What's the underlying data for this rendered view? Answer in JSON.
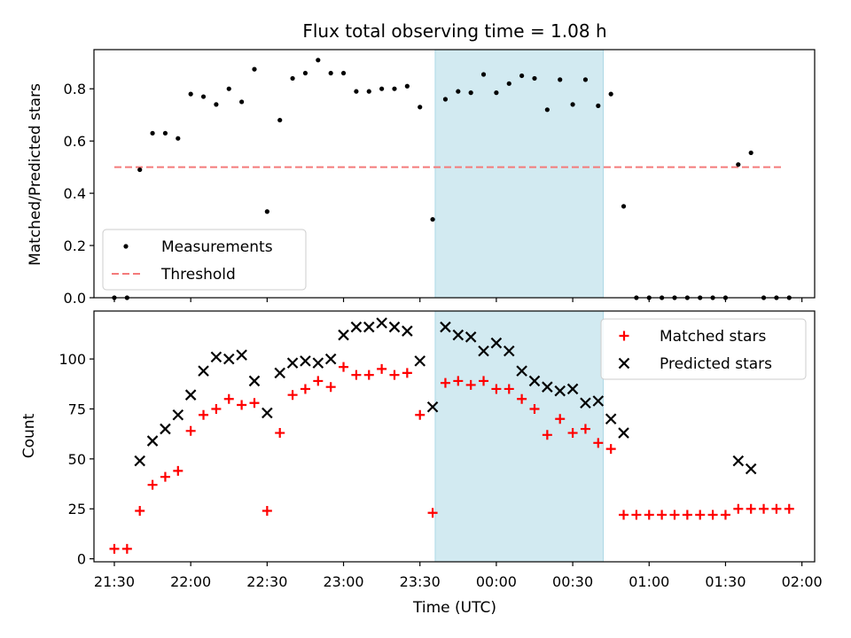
{
  "title": "Flux total observing time = 1.08 h",
  "colors": {
    "measurement": "#000000",
    "threshold": "#f47a7a",
    "matched": "#ff0000",
    "predicted": "#000000",
    "shade": "#add8e6"
  },
  "chart_data": [
    {
      "type": "scatter",
      "ylabel": "Matched/Predicted stars",
      "xlabel": "",
      "xlim": [
        "21:22",
        "02:05"
      ],
      "ylim": [
        0,
        0.95
      ],
      "yticks": [
        "0.0",
        "0.2",
        "0.4",
        "0.6",
        "0.8"
      ],
      "shaded_span": [
        "23:36",
        "00:42"
      ],
      "threshold": {
        "y": 0.5,
        "x_range": [
          "21:30",
          "01:52"
        ]
      },
      "legend": {
        "position": "lower-left",
        "entries": [
          "Measurements",
          "Threshold"
        ]
      },
      "series": [
        {
          "name": "Measurements",
          "marker": "dot",
          "points": [
            [
              "21:30",
              0.0
            ],
            [
              "21:35",
              0.0
            ],
            [
              "21:40",
              0.49
            ],
            [
              "21:45",
              0.63
            ],
            [
              "21:50",
              0.63
            ],
            [
              "21:55",
              0.61
            ],
            [
              "22:00",
              0.78
            ],
            [
              "22:05",
              0.77
            ],
            [
              "22:10",
              0.74
            ],
            [
              "22:15",
              0.8
            ],
            [
              "22:20",
              0.75
            ],
            [
              "22:25",
              0.875
            ],
            [
              "22:30",
              0.33
            ],
            [
              "22:35",
              0.68
            ],
            [
              "22:40",
              0.84
            ],
            [
              "22:45",
              0.86
            ],
            [
              "22:50",
              0.91
            ],
            [
              "22:55",
              0.86
            ],
            [
              "23:00",
              0.86
            ],
            [
              "23:05",
              0.79
            ],
            [
              "23:10",
              0.79
            ],
            [
              "23:15",
              0.8
            ],
            [
              "23:20",
              0.8
            ],
            [
              "23:25",
              0.81
            ],
            [
              "23:30",
              0.73
            ],
            [
              "23:35",
              0.3
            ],
            [
              "23:40",
              0.76
            ],
            [
              "23:45",
              0.79
            ],
            [
              "23:50",
              0.785
            ],
            [
              "23:55",
              0.855
            ],
            [
              "00:00",
              0.785
            ],
            [
              "00:05",
              0.82
            ],
            [
              "00:10",
              0.85
            ],
            [
              "00:15",
              0.84
            ],
            [
              "00:20",
              0.72
            ],
            [
              "00:25",
              0.835
            ],
            [
              "00:30",
              0.74
            ],
            [
              "00:35",
              0.835
            ],
            [
              "00:40",
              0.735
            ],
            [
              "00:45",
              0.78
            ],
            [
              "00:50",
              0.35
            ],
            [
              "00:55",
              0.0
            ],
            [
              "01:00",
              0.0
            ],
            [
              "01:05",
              0.0
            ],
            [
              "01:10",
              0.0
            ],
            [
              "01:15",
              0.0
            ],
            [
              "01:20",
              0.0
            ],
            [
              "01:25",
              0.0
            ],
            [
              "01:30",
              0.0
            ],
            [
              "01:35",
              0.51
            ],
            [
              "01:40",
              0.555
            ],
            [
              "01:45",
              0.0
            ],
            [
              "01:50",
              0.0
            ],
            [
              "01:55",
              0.0
            ]
          ]
        }
      ]
    },
    {
      "type": "scatter",
      "xlabel": "Time (UTC)",
      "ylabel": "Count",
      "xlim": [
        "21:22",
        "02:05"
      ],
      "ylim": [
        -1.5,
        124
      ],
      "xticks": [
        "21:30",
        "22:00",
        "22:30",
        "23:00",
        "23:30",
        "00:00",
        "00:30",
        "01:00",
        "01:30",
        "02:00"
      ],
      "yticks": [
        "0",
        "25",
        "50",
        "75",
        "100"
      ],
      "shaded_span": [
        "23:36",
        "00:42"
      ],
      "legend": {
        "position": "upper-right",
        "entries": [
          "Matched stars",
          "Predicted stars"
        ]
      },
      "series": [
        {
          "name": "Matched stars",
          "marker": "plus",
          "points": [
            [
              "21:30",
              5
            ],
            [
              "21:35",
              5
            ],
            [
              "21:40",
              24
            ],
            [
              "21:45",
              37
            ],
            [
              "21:50",
              41
            ],
            [
              "21:55",
              44
            ],
            [
              "22:00",
              64
            ],
            [
              "22:05",
              72
            ],
            [
              "22:10",
              75
            ],
            [
              "22:15",
              80
            ],
            [
              "22:20",
              77
            ],
            [
              "22:25",
              78
            ],
            [
              "22:30",
              24
            ],
            [
              "22:35",
              63
            ],
            [
              "22:40",
              82
            ],
            [
              "22:45",
              85
            ],
            [
              "22:50",
              89
            ],
            [
              "22:55",
              86
            ],
            [
              "23:00",
              96
            ],
            [
              "23:05",
              92
            ],
            [
              "23:10",
              92
            ],
            [
              "23:15",
              95
            ],
            [
              "23:20",
              92
            ],
            [
              "23:25",
              93
            ],
            [
              "23:30",
              72
            ],
            [
              "23:35",
              23
            ],
            [
              "23:40",
              88
            ],
            [
              "23:45",
              89
            ],
            [
              "23:50",
              87
            ],
            [
              "23:55",
              89
            ],
            [
              "00:00",
              85
            ],
            [
              "00:05",
              85
            ],
            [
              "00:10",
              80
            ],
            [
              "00:15",
              75
            ],
            [
              "00:20",
              62
            ],
            [
              "00:25",
              70
            ],
            [
              "00:30",
              63
            ],
            [
              "00:35",
              65
            ],
            [
              "00:40",
              58
            ],
            [
              "00:45",
              55
            ],
            [
              "00:50",
              22
            ],
            [
              "00:55",
              22
            ],
            [
              "01:00",
              22
            ],
            [
              "01:05",
              22
            ],
            [
              "01:10",
              22
            ],
            [
              "01:15",
              22
            ],
            [
              "01:20",
              22
            ],
            [
              "01:25",
              22
            ],
            [
              "01:30",
              22
            ],
            [
              "01:35",
              25
            ],
            [
              "01:40",
              25
            ],
            [
              "01:45",
              25
            ],
            [
              "01:50",
              25
            ],
            [
              "01:55",
              25
            ]
          ]
        },
        {
          "name": "Predicted stars",
          "marker": "x",
          "points": [
            [
              "21:40",
              49
            ],
            [
              "21:45",
              59
            ],
            [
              "21:50",
              65
            ],
            [
              "21:55",
              72
            ],
            [
              "22:00",
              82
            ],
            [
              "22:05",
              94
            ],
            [
              "22:10",
              101
            ],
            [
              "22:15",
              100
            ],
            [
              "22:20",
              102
            ],
            [
              "22:25",
              89
            ],
            [
              "22:30",
              73
            ],
            [
              "22:35",
              93
            ],
            [
              "22:40",
              98
            ],
            [
              "22:45",
              99
            ],
            [
              "22:50",
              98
            ],
            [
              "22:55",
              100
            ],
            [
              "23:00",
              112
            ],
            [
              "23:05",
              116
            ],
            [
              "23:10",
              116
            ],
            [
              "23:15",
              118
            ],
            [
              "23:20",
              116
            ],
            [
              "23:25",
              114
            ],
            [
              "23:30",
              99
            ],
            [
              "23:35",
              76
            ],
            [
              "23:40",
              116
            ],
            [
              "23:45",
              112
            ],
            [
              "23:50",
              111
            ],
            [
              "23:55",
              104
            ],
            [
              "00:00",
              108
            ],
            [
              "00:05",
              104
            ],
            [
              "00:10",
              94
            ],
            [
              "00:15",
              89
            ],
            [
              "00:20",
              86
            ],
            [
              "00:25",
              84
            ],
            [
              "00:30",
              85
            ],
            [
              "00:35",
              78
            ],
            [
              "00:40",
              79
            ],
            [
              "00:45",
              70
            ],
            [
              "00:50",
              63
            ],
            [
              "01:35",
              49
            ],
            [
              "01:40",
              45
            ]
          ]
        }
      ]
    }
  ]
}
